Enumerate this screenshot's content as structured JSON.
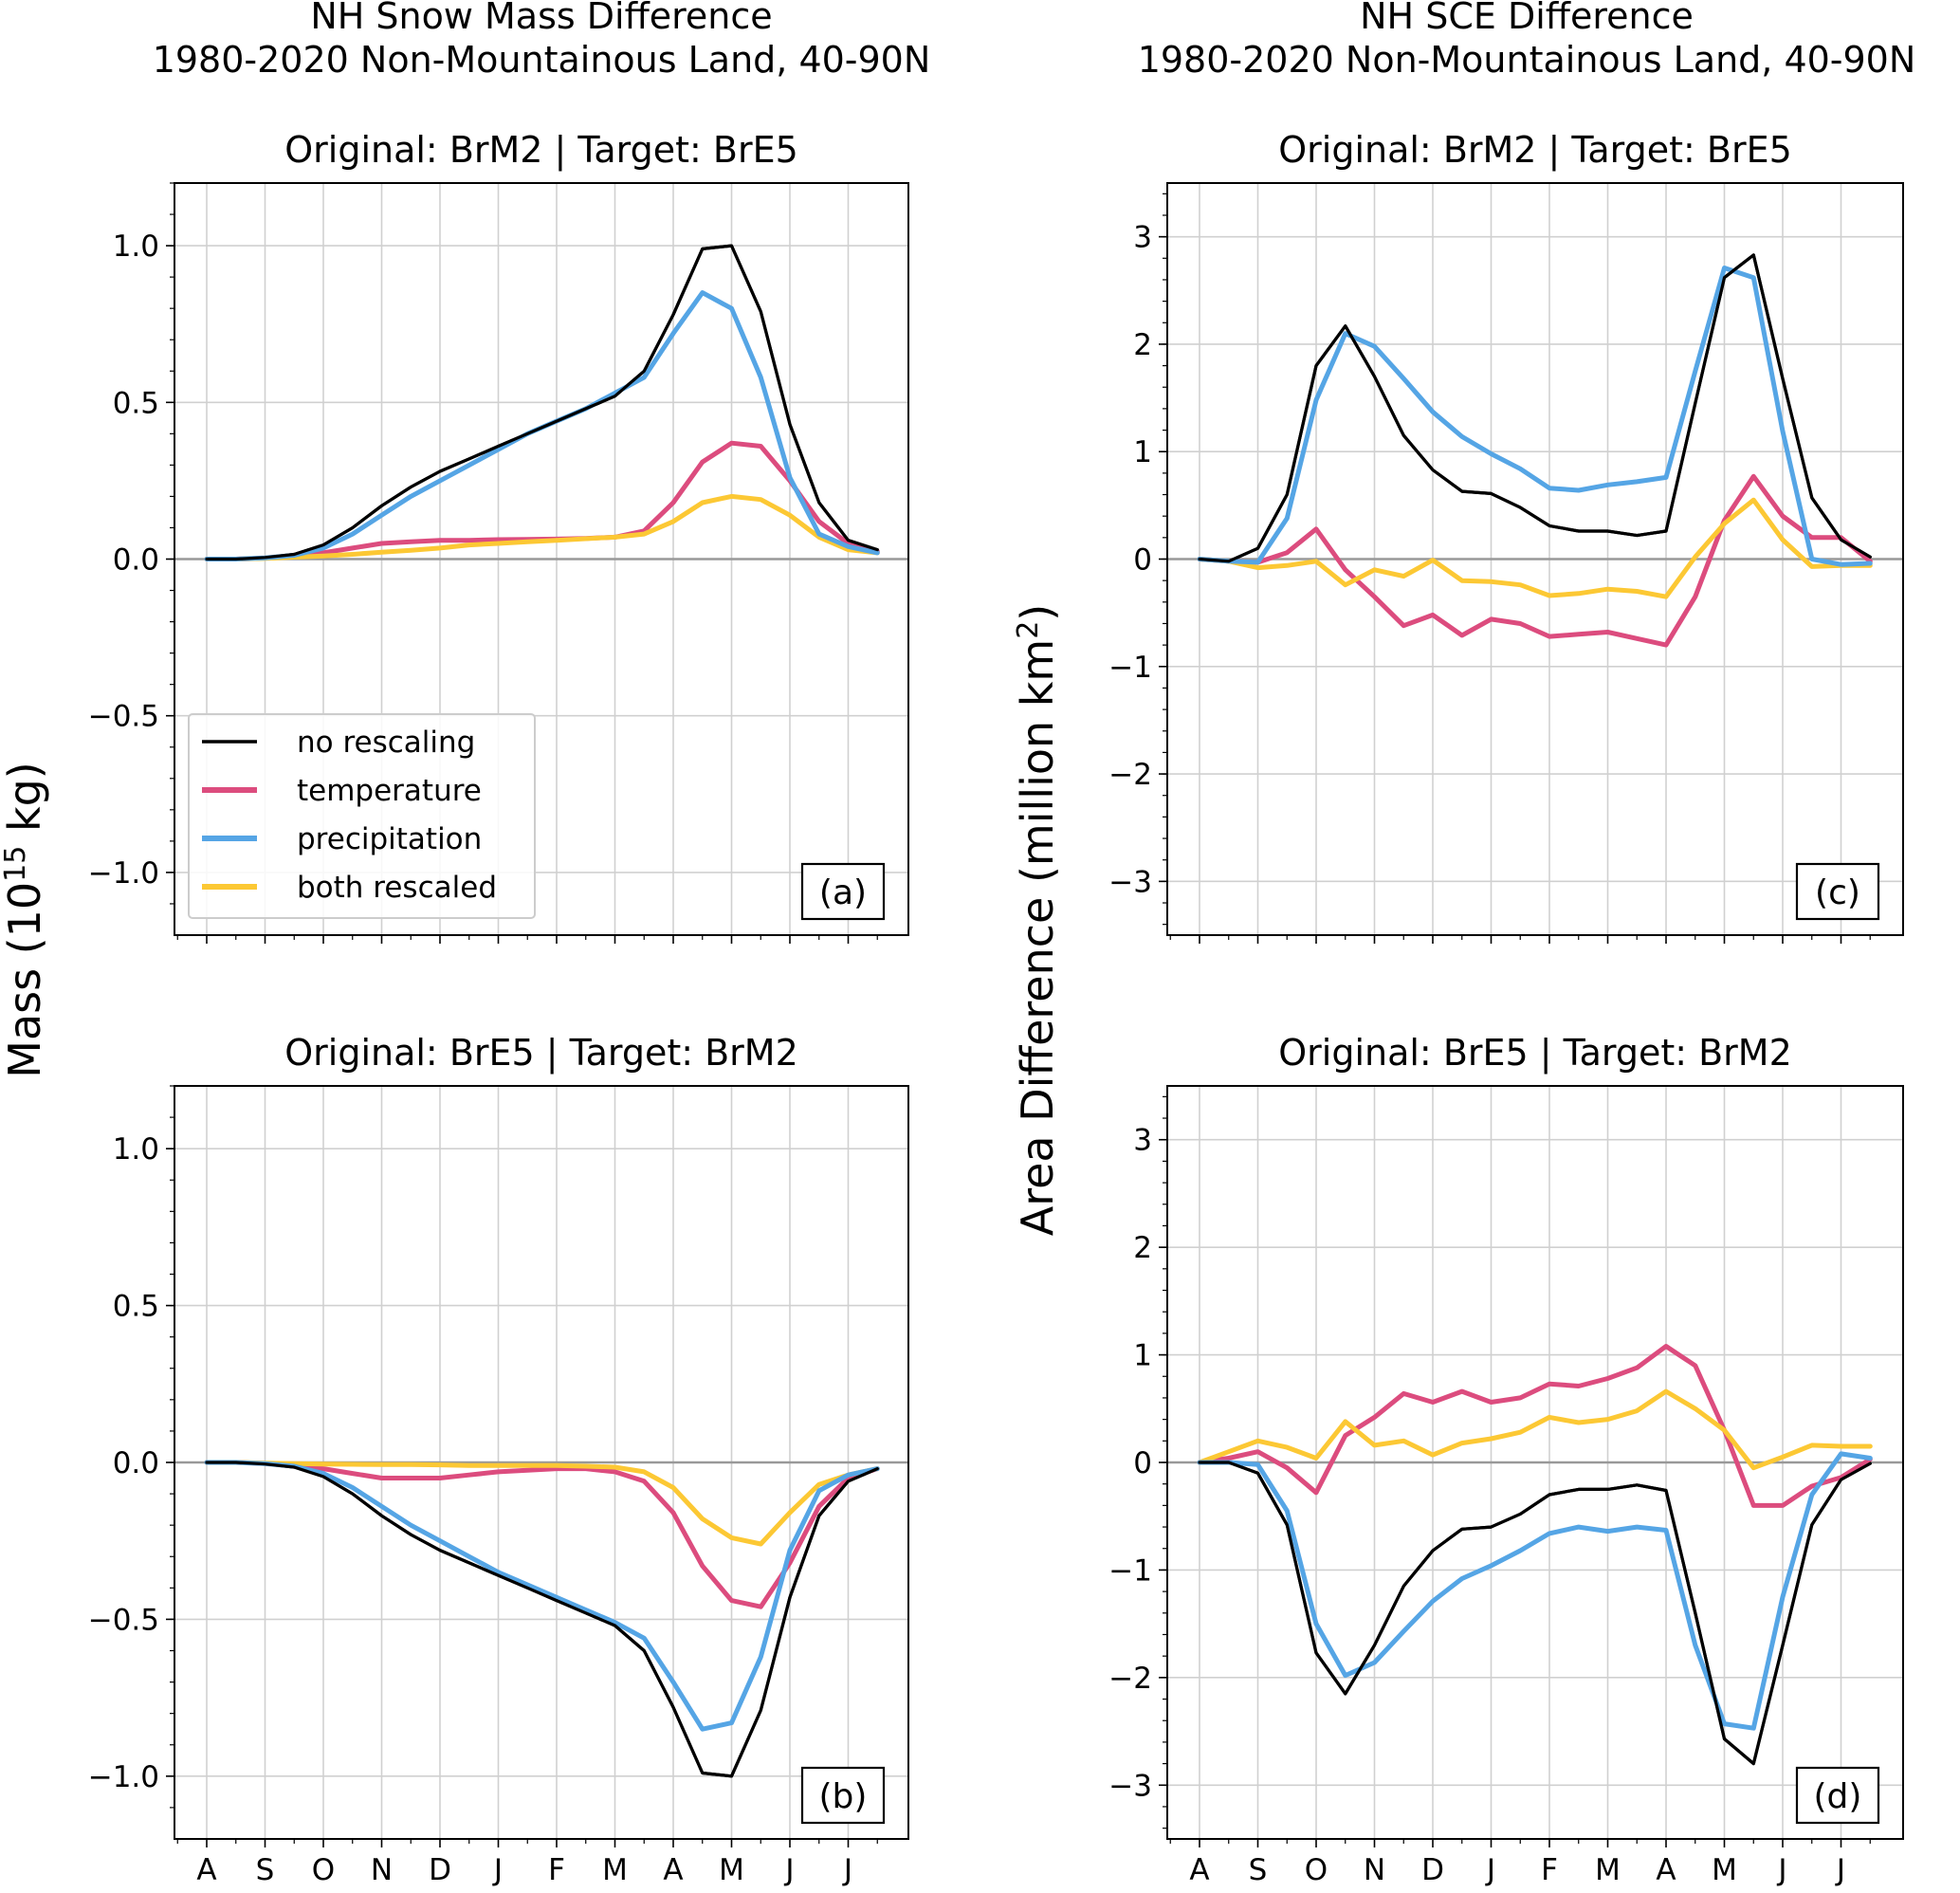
{
  "columns": [
    {
      "title_line1": "NH Snow Mass Difference",
      "title_line2": "1980-2020 Non-Mountainous Land, 40-90N",
      "ylabel_main": "Mass (10",
      "ylabel_sup": "15",
      "ylabel_tail": " kg)"
    },
    {
      "title_line1": "NH SCE Difference",
      "title_line2": "1980-2020 Non-Mountainous Land, 40-90N",
      "ylabel_main": "Area Difference (million km",
      "ylabel_sup": "2",
      "ylabel_tail": ")"
    }
  ],
  "x_tick_labels": [
    "A",
    "S",
    "O",
    "N",
    "D",
    "J",
    "F",
    "M",
    "A",
    "M",
    "J",
    "J"
  ],
  "legend": [
    {
      "label": "no rescaling",
      "color": "#000000"
    },
    {
      "label": "temperature",
      "color": "#dc4c7e"
    },
    {
      "label": "precipitation",
      "color": "#55a5e5"
    },
    {
      "label": "both rescaled",
      "color": "#fcc834"
    }
  ],
  "chart_data": [
    {
      "id": "a",
      "type": "line",
      "panel_label": "(a)",
      "title": "Original: BrM2 | Target: BrE5",
      "xlabel": "",
      "ylabel": "Mass (10^15 kg)",
      "ylim": [
        -1.2,
        1.2
      ],
      "yticks": [
        -1.0,
        -0.5,
        0.0,
        0.5,
        1.0
      ],
      "ytick_labels": [
        "−1.0",
        "−0.5",
        "0.0",
        "0.5",
        "1.0"
      ],
      "x": [
        "Aug 1",
        "Aug 16",
        "Sep 1",
        "Sep 16",
        "Oct 1",
        "Oct 16",
        "Nov 1",
        "Nov 16",
        "Dec 1",
        "Dec 16",
        "Jan 1",
        "Jan 16",
        "Feb 1",
        "Feb 16",
        "Mar 1",
        "Mar 16",
        "Apr 1",
        "Apr 16",
        "May 1",
        "May 16",
        "Jun 1",
        "Jun 16",
        "Jul 1",
        "Jul 16"
      ],
      "grid": true,
      "series": [
        {
          "name": "no rescaling",
          "color": "#000000",
          "values": [
            0.0,
            0.0,
            0.005,
            0.015,
            0.045,
            0.1,
            0.17,
            0.23,
            0.28,
            0.32,
            0.36,
            0.4,
            0.44,
            0.48,
            0.52,
            0.6,
            0.78,
            0.99,
            1.0,
            0.79,
            0.43,
            0.18,
            0.06,
            0.03
          ]
        },
        {
          "name": "temperature",
          "color": "#dc4c7e",
          "values": [
            0.0,
            0.0,
            0.003,
            0.01,
            0.02,
            0.035,
            0.05,
            0.055,
            0.06,
            0.06,
            0.062,
            0.063,
            0.064,
            0.066,
            0.07,
            0.09,
            0.18,
            0.31,
            0.37,
            0.36,
            0.25,
            0.12,
            0.05,
            0.025
          ]
        },
        {
          "name": "precipitation",
          "color": "#55a5e5",
          "values": [
            0.0,
            0.0,
            0.004,
            0.012,
            0.035,
            0.08,
            0.14,
            0.2,
            0.25,
            0.3,
            0.35,
            0.4,
            0.44,
            0.48,
            0.53,
            0.58,
            0.72,
            0.85,
            0.8,
            0.58,
            0.26,
            0.08,
            0.04,
            0.02
          ]
        },
        {
          "name": "both rescaled",
          "color": "#fcc834",
          "values": [
            0.0,
            0.0,
            0.002,
            0.006,
            0.01,
            0.015,
            0.022,
            0.028,
            0.035,
            0.045,
            0.05,
            0.055,
            0.06,
            0.065,
            0.07,
            0.08,
            0.12,
            0.18,
            0.2,
            0.19,
            0.14,
            0.07,
            0.03,
            0.02
          ]
        }
      ]
    },
    {
      "id": "b",
      "type": "line",
      "panel_label": "(b)",
      "title": "Original: BrE5 | Target: BrM2",
      "xlabel": "",
      "ylabel": "Mass (10^15 kg)",
      "ylim": [
        -1.2,
        1.2
      ],
      "yticks": [
        -1.0,
        -0.5,
        0.0,
        0.5,
        1.0
      ],
      "ytick_labels": [
        "−1.0",
        "−0.5",
        "0.0",
        "0.5",
        "1.0"
      ],
      "x": [
        "Aug 1",
        "Aug 16",
        "Sep 1",
        "Sep 16",
        "Oct 1",
        "Oct 16",
        "Nov 1",
        "Nov 16",
        "Dec 1",
        "Dec 16",
        "Jan 1",
        "Jan 16",
        "Feb 1",
        "Feb 16",
        "Mar 1",
        "Mar 16",
        "Apr 1",
        "Apr 16",
        "May 1",
        "May 16",
        "Jun 1",
        "Jun 16",
        "Jul 1",
        "Jul 16"
      ],
      "grid": true,
      "series": [
        {
          "name": "no rescaling",
          "color": "#000000",
          "values": [
            0.0,
            0.0,
            -0.005,
            -0.015,
            -0.045,
            -0.1,
            -0.17,
            -0.23,
            -0.28,
            -0.32,
            -0.36,
            -0.4,
            -0.44,
            -0.48,
            -0.52,
            -0.6,
            -0.78,
            -0.99,
            -1.0,
            -0.79,
            -0.43,
            -0.17,
            -0.06,
            -0.02
          ]
        },
        {
          "name": "temperature",
          "color": "#dc4c7e",
          "values": [
            0.0,
            0.0,
            -0.003,
            -0.01,
            -0.02,
            -0.035,
            -0.05,
            -0.05,
            -0.05,
            -0.04,
            -0.03,
            -0.025,
            -0.02,
            -0.02,
            -0.03,
            -0.06,
            -0.16,
            -0.33,
            -0.44,
            -0.46,
            -0.32,
            -0.14,
            -0.05,
            -0.02
          ]
        },
        {
          "name": "precipitation",
          "color": "#55a5e5",
          "values": [
            0.0,
            0.0,
            -0.004,
            -0.012,
            -0.035,
            -0.08,
            -0.14,
            -0.2,
            -0.25,
            -0.3,
            -0.35,
            -0.39,
            -0.43,
            -0.47,
            -0.51,
            -0.56,
            -0.7,
            -0.85,
            -0.83,
            -0.62,
            -0.28,
            -0.09,
            -0.04,
            -0.02
          ]
        },
        {
          "name": "both rescaled",
          "color": "#fcc834",
          "values": [
            0.0,
            0.0,
            -0.002,
            -0.004,
            -0.005,
            -0.006,
            -0.007,
            -0.007,
            -0.008,
            -0.01,
            -0.01,
            -0.01,
            -0.01,
            -0.012,
            -0.015,
            -0.03,
            -0.08,
            -0.18,
            -0.24,
            -0.26,
            -0.16,
            -0.07,
            -0.04,
            -0.02
          ]
        }
      ]
    },
    {
      "id": "c",
      "type": "line",
      "panel_label": "(c)",
      "title": "Original: BrM2 | Target: BrE5",
      "xlabel": "",
      "ylabel": "Area Difference (million km^2)",
      "ylim": [
        -3.5,
        3.5
      ],
      "yticks": [
        -3,
        -2,
        -1,
        0,
        1,
        2,
        3
      ],
      "ytick_labels": [
        "−3",
        "−2",
        "−1",
        "0",
        "1",
        "2",
        "3"
      ],
      "x": [
        "Aug 1",
        "Aug 16",
        "Sep 1",
        "Sep 16",
        "Oct 1",
        "Oct 16",
        "Nov 1",
        "Nov 16",
        "Dec 1",
        "Dec 16",
        "Jan 1",
        "Jan 16",
        "Feb 1",
        "Feb 16",
        "Mar 1",
        "Mar 16",
        "Apr 1",
        "Apr 16",
        "May 1",
        "May 16",
        "Jun 1",
        "Jun 16",
        "Jul 1",
        "Jul 16"
      ],
      "grid": true,
      "series": [
        {
          "name": "no rescaling",
          "color": "#000000",
          "values": [
            0.0,
            -0.02,
            0.1,
            0.6,
            1.8,
            2.17,
            1.7,
            1.15,
            0.83,
            0.63,
            0.61,
            0.48,
            0.31,
            0.26,
            0.26,
            0.22,
            0.26,
            1.45,
            2.62,
            2.83,
            1.68,
            0.57,
            0.18,
            0.02
          ]
        },
        {
          "name": "temperature",
          "color": "#dc4c7e",
          "values": [
            0.0,
            -0.02,
            -0.03,
            0.06,
            0.28,
            -0.1,
            -0.35,
            -0.62,
            -0.52,
            -0.71,
            -0.56,
            -0.6,
            -0.72,
            -0.7,
            -0.68,
            -0.74,
            -0.8,
            -0.35,
            0.36,
            0.77,
            0.4,
            0.2,
            0.2,
            -0.02
          ]
        },
        {
          "name": "precipitation",
          "color": "#55a5e5",
          "values": [
            0.0,
            -0.02,
            -0.03,
            0.38,
            1.48,
            2.1,
            1.98,
            1.68,
            1.37,
            1.14,
            0.98,
            0.84,
            0.66,
            0.64,
            0.69,
            0.72,
            0.76,
            1.75,
            2.71,
            2.62,
            1.19,
            0.0,
            -0.05,
            -0.04
          ]
        },
        {
          "name": "both rescaled",
          "color": "#fcc834",
          "values": [
            0.0,
            -0.02,
            -0.08,
            -0.06,
            -0.02,
            -0.24,
            -0.1,
            -0.16,
            -0.01,
            -0.2,
            -0.21,
            -0.24,
            -0.34,
            -0.32,
            -0.28,
            -0.3,
            -0.35,
            0.02,
            0.33,
            0.55,
            0.18,
            -0.07,
            -0.06,
            -0.06
          ]
        }
      ]
    },
    {
      "id": "d",
      "type": "line",
      "panel_label": "(d)",
      "title": "Original: BrE5 | Target: BrM2",
      "xlabel": "",
      "ylabel": "Area Difference (million km^2)",
      "ylim": [
        -3.5,
        3.5
      ],
      "yticks": [
        -3,
        -2,
        -1,
        0,
        1,
        2,
        3
      ],
      "ytick_labels": [
        "−3",
        "−2",
        "−1",
        "0",
        "1",
        "2",
        "3"
      ],
      "x": [
        "Aug 1",
        "Aug 16",
        "Sep 1",
        "Sep 16",
        "Oct 1",
        "Oct 16",
        "Nov 1",
        "Nov 16",
        "Dec 1",
        "Dec 16",
        "Jan 1",
        "Jan 16",
        "Feb 1",
        "Feb 16",
        "Mar 1",
        "Mar 16",
        "Apr 1",
        "Apr 16",
        "May 1",
        "May 16",
        "Jun 1",
        "Jun 16",
        "Jul 1",
        "Jul 16"
      ],
      "grid": true,
      "series": [
        {
          "name": "no rescaling",
          "color": "#000000",
          "values": [
            0.0,
            0.0,
            -0.1,
            -0.58,
            -1.77,
            -2.15,
            -1.7,
            -1.15,
            -0.82,
            -0.62,
            -0.6,
            -0.48,
            -0.3,
            -0.25,
            -0.25,
            -0.21,
            -0.26,
            -1.4,
            -2.57,
            -2.8,
            -1.7,
            -0.58,
            -0.16,
            -0.01
          ]
        },
        {
          "name": "temperature",
          "color": "#dc4c7e",
          "values": [
            0.0,
            0.04,
            0.1,
            -0.05,
            -0.28,
            0.25,
            0.42,
            0.64,
            0.56,
            0.66,
            0.56,
            0.6,
            0.73,
            0.71,
            0.78,
            0.88,
            1.08,
            0.9,
            0.3,
            -0.4,
            -0.4,
            -0.22,
            -0.14,
            0.03
          ]
        },
        {
          "name": "precipitation",
          "color": "#55a5e5",
          "values": [
            0.0,
            0.0,
            -0.02,
            -0.45,
            -1.5,
            -1.98,
            -1.86,
            -1.57,
            -1.29,
            -1.08,
            -0.96,
            -0.82,
            -0.66,
            -0.6,
            -0.64,
            -0.6,
            -0.63,
            -1.7,
            -2.43,
            -2.47,
            -1.25,
            -0.3,
            0.08,
            0.04
          ]
        },
        {
          "name": "both rescaled",
          "color": "#fcc834",
          "values": [
            0.0,
            0.1,
            0.2,
            0.14,
            0.04,
            0.38,
            0.16,
            0.2,
            0.07,
            0.18,
            0.22,
            0.28,
            0.42,
            0.37,
            0.4,
            0.48,
            0.66,
            0.5,
            0.3,
            -0.05,
            0.05,
            0.16,
            0.15,
            0.15
          ]
        }
      ]
    }
  ]
}
